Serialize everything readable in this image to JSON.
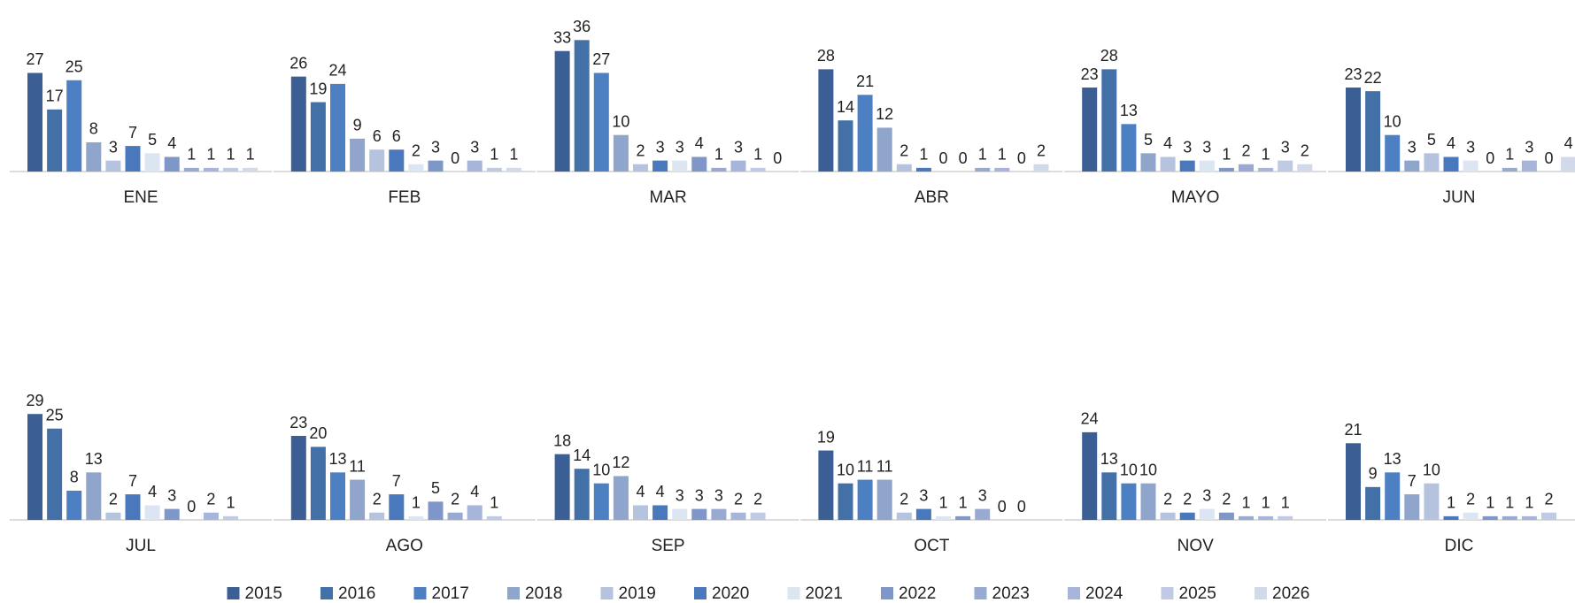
{
  "chart_data": {
    "type": "bar",
    "categories": [
      "ENE",
      "FEB",
      "MAR",
      "ABR",
      "MAYO",
      "JUN",
      "JUL",
      "AGO",
      "SEP",
      "OCT",
      "NOV",
      "DIC"
    ],
    "series": [
      {
        "name": "2015",
        "color": "#3b5f95",
        "values": [
          27,
          26,
          33,
          28,
          23,
          23,
          29,
          23,
          18,
          19,
          24,
          21
        ]
      },
      {
        "name": "2016",
        "color": "#4470a8",
        "values": [
          17,
          19,
          36,
          14,
          28,
          22,
          25,
          20,
          14,
          10,
          13,
          9
        ]
      },
      {
        "name": "2017",
        "color": "#4c80c2",
        "values": [
          25,
          24,
          27,
          21,
          13,
          10,
          8,
          13,
          10,
          11,
          10,
          13
        ]
      },
      {
        "name": "2018",
        "color": "#8fa5cc",
        "values": [
          8,
          9,
          10,
          12,
          5,
          3,
          13,
          11,
          12,
          11,
          10,
          7
        ]
      },
      {
        "name": "2019",
        "color": "#b6c3de",
        "values": [
          3,
          6,
          2,
          2,
          4,
          5,
          2,
          2,
          4,
          2,
          2,
          10
        ]
      },
      {
        "name": "2020",
        "color": "#4a78bd",
        "values": [
          7,
          6,
          3,
          1,
          3,
          4,
          7,
          7,
          4,
          3,
          2,
          1
        ]
      },
      {
        "name": "2021",
        "color": "#dce5f2",
        "values": [
          5,
          2,
          3,
          0,
          3,
          3,
          4,
          1,
          3,
          1,
          3,
          2
        ]
      },
      {
        "name": "2022",
        "color": "#7e96c8",
        "values": [
          4,
          3,
          4,
          0,
          1,
          0,
          3,
          5,
          3,
          1,
          2,
          1
        ]
      },
      {
        "name": "2023",
        "color": "#99aad2",
        "values": [
          1,
          0,
          1,
          1,
          2,
          1,
          0,
          2,
          3,
          3,
          1,
          1
        ]
      },
      {
        "name": "2024",
        "color": "#a8b5db",
        "values": [
          1,
          3,
          3,
          1,
          1,
          3,
          2,
          4,
          2,
          0,
          1,
          1
        ]
      },
      {
        "name": "2025",
        "color": "#c0cae5",
        "values": [
          1,
          1,
          1,
          0,
          3,
          0,
          1,
          1,
          2,
          0,
          1,
          2
        ]
      },
      {
        "name": "2026",
        "color": "#d2d9eb",
        "values": [
          1,
          1,
          0,
          2,
          2,
          4,
          null,
          null,
          null,
          null,
          null,
          null
        ]
      }
    ],
    "legend": "bottom"
  }
}
